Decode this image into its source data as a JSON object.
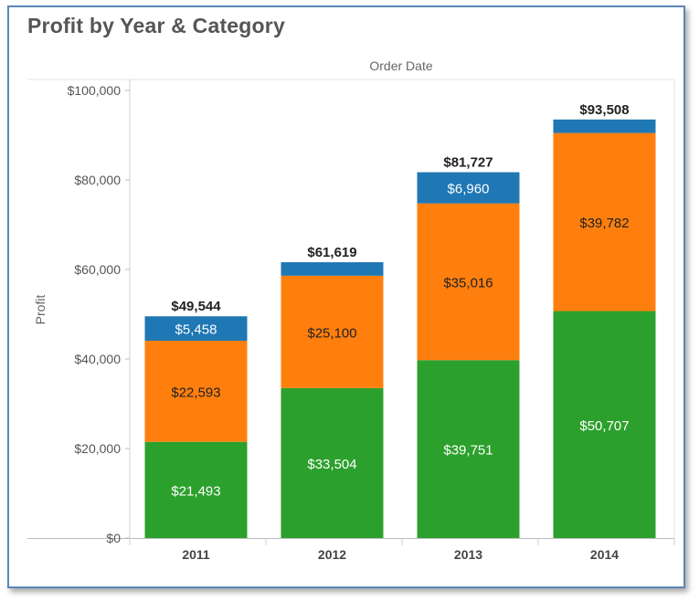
{
  "title": "Profit by Year & Category",
  "chart_data": {
    "type": "bar",
    "stacked": true,
    "title": "Profit by Year & Category",
    "column_header": "Order Date",
    "ylabel": "Profit",
    "xlabel": "",
    "categories": [
      "2011",
      "2012",
      "2013",
      "2014"
    ],
    "ylim": [
      0,
      100000
    ],
    "yticks": [
      0,
      20000,
      40000,
      60000,
      80000,
      100000
    ],
    "ytick_labels": [
      "$0",
      "$20,000",
      "$40,000",
      "$60,000",
      "$80,000",
      "$100,000"
    ],
    "series": [
      {
        "values": [
          21493,
          33504,
          39751,
          50707
        ],
        "labels": [
          "$21,493",
          "$33,504",
          "$39,751",
          "$50,707"
        ],
        "color": "#2ca02c",
        "label_color": "#ffffff"
      },
      {
        "values": [
          22593,
          25100,
          35016,
          39782
        ],
        "labels": [
          "$22,593",
          "$25,100",
          "$35,016",
          "$39,782"
        ],
        "color": "#ff7f0e",
        "label_color": "#222222"
      },
      {
        "values": [
          5458,
          3015,
          6960,
          3019
        ],
        "labels": [
          "$5,458",
          "",
          "$6,960",
          ""
        ],
        "color": "#1f77b4",
        "label_color": "#ffffff"
      }
    ],
    "totals": [
      49544,
      61619,
      81727,
      93508
    ],
    "total_labels": [
      "$49,544",
      "$61,619",
      "$81,727",
      "$93,508"
    ],
    "grid": false,
    "legend": "none"
  }
}
